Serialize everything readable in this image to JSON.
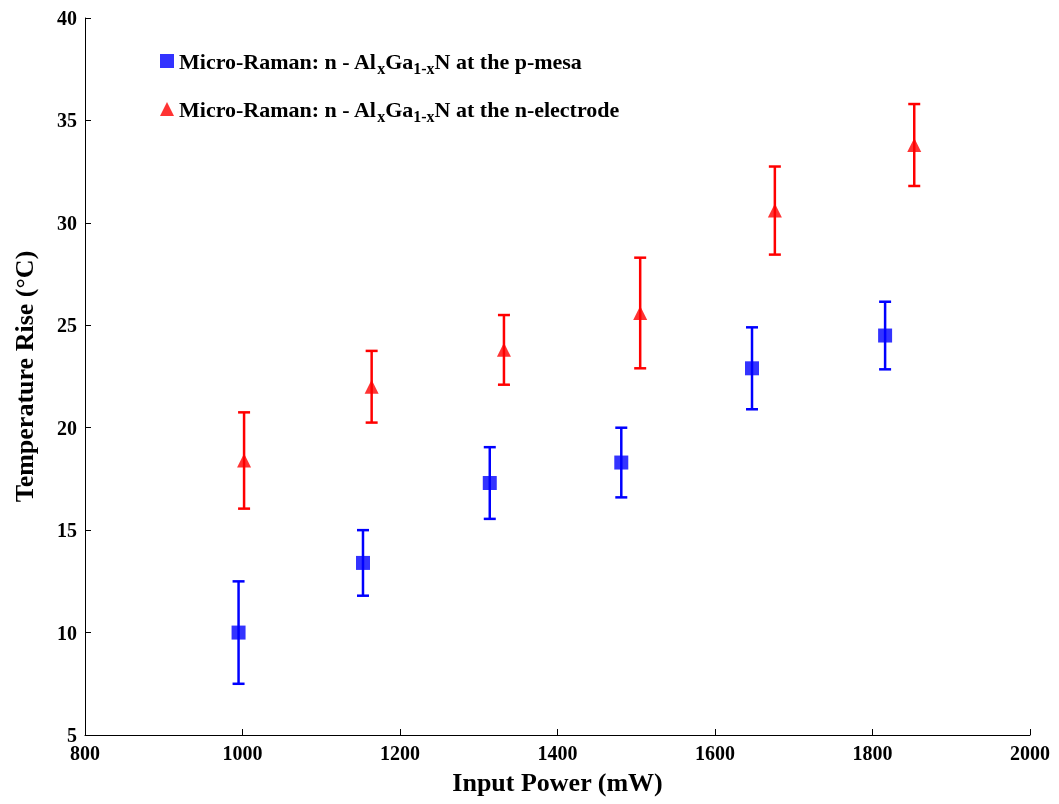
{
  "chart_data": {
    "type": "scatter",
    "xlabel": "Input Power (mW)",
    "ylabel": "Temperature Rise (°C)",
    "xlim": [
      800,
      2000
    ],
    "xticks": [
      800,
      1000,
      1200,
      1400,
      1600,
      1800,
      2000
    ],
    "ylim": [
      5,
      40
    ],
    "yticks": [
      5,
      10,
      15,
      20,
      25,
      30,
      35,
      40
    ],
    "grid": false,
    "legend": "top left",
    "series": [
      {
        "name": "Micro-Raman: n - Al$_{x}$Ga$_{1-x}$N at the p-mesa",
        "color": "#0000ff",
        "marker": "square",
        "x": [
          995,
          1153,
          1314,
          1481,
          1647,
          1816
        ],
        "values": [
          10.0,
          13.4,
          17.3,
          18.3,
          22.9,
          24.5
        ],
        "errors": [
          2.5,
          1.6,
          1.75,
          1.7,
          2.0,
          1.65
        ]
      },
      {
        "name": "Micro-Raman: n - Al$_{x}$Ga$_{1-x}$N at the n-electrode",
        "color": "#ff0000",
        "marker": "triangle",
        "x": [
          1002,
          1164,
          1332,
          1505,
          1676,
          1853
        ],
        "values": [
          18.4,
          22.0,
          23.8,
          25.6,
          30.6,
          33.8
        ],
        "errors": [
          2.35,
          1.75,
          1.7,
          2.7,
          2.15,
          2.0
        ]
      }
    ]
  }
}
